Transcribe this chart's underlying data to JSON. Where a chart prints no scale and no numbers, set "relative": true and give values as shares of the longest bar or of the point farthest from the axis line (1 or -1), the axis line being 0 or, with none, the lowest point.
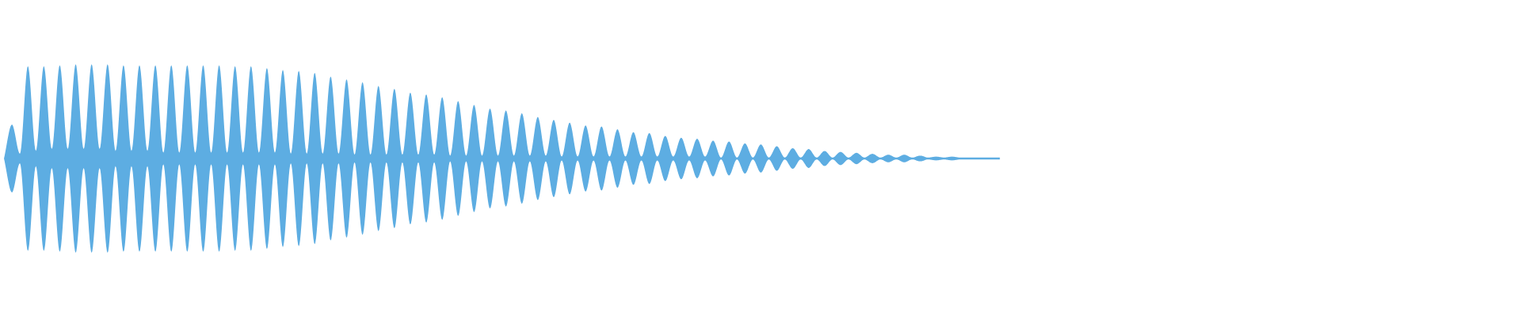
{
  "chart_data": {
    "type": "area",
    "relative": true,
    "tick_labels": false,
    "legend": false,
    "categories": [
      null,
      null,
      null,
      null,
      null,
      null,
      null,
      null,
      null,
      null,
      null,
      null,
      null,
      null,
      null,
      null,
      null,
      null,
      null,
      null,
      null,
      null,
      null,
      null,
      null,
      null,
      null,
      null,
      null,
      null,
      null,
      null,
      null,
      null,
      null,
      null,
      null,
      null,
      null,
      null,
      null,
      null,
      null,
      null,
      null,
      null,
      null,
      null,
      null,
      null,
      null,
      null,
      null,
      null,
      null,
      null,
      null,
      null,
      null,
      null,
      null,
      null,
      null,
      null,
      null,
      null,
      null,
      null,
      null,
      null,
      null,
      null,
      null,
      null,
      null,
      null,
      null,
      null,
      null,
      null,
      null,
      null,
      null,
      null,
      null,
      null,
      null,
      null,
      null,
      null,
      null,
      null,
      null,
      null,
      null,
      null,
      null,
      null,
      null,
      null,
      null,
      null,
      null,
      null,
      null,
      null,
      null,
      null,
      null,
      null,
      null,
      null,
      null,
      null,
      null,
      null,
      null,
      null,
      null,
      null,
      null,
      null,
      null,
      null,
      null,
      null
    ],
    "series": [
      {
        "color": "#5dade2",
        "values": [
          0,
          0.36,
          0.05,
          0.98,
          0.08,
          0.98,
          0.1,
          0.99,
          0.1,
          1.0,
          0.1,
          1.0,
          0.1,
          1.0,
          0.08,
          0.99,
          0.08,
          0.99,
          0.08,
          0.99,
          0.06,
          0.99,
          0.06,
          0.99,
          0.06,
          0.99,
          0.06,
          0.99,
          0.06,
          0.98,
          0.06,
          0.98,
          0.06,
          0.96,
          0.06,
          0.94,
          0.05,
          0.93,
          0.05,
          0.91,
          0.05,
          0.87,
          0.05,
          0.84,
          0.04,
          0.81,
          0.04,
          0.77,
          0.04,
          0.74,
          0.04,
          0.7,
          0.04,
          0.68,
          0.04,
          0.65,
          0.03,
          0.61,
          0.03,
          0.57,
          0.03,
          0.53,
          0.03,
          0.51,
          0.03,
          0.48,
          0.03,
          0.44,
          0.03,
          0.41,
          0.02,
          0.38,
          0.02,
          0.35,
          0.02,
          0.34,
          0.02,
          0.31,
          0.02,
          0.28,
          0.02,
          0.27,
          0.02,
          0.24,
          0.02,
          0.22,
          0.02,
          0.21,
          0.02,
          0.19,
          0.01,
          0.18,
          0.01,
          0.16,
          0.01,
          0.15,
          0.01,
          0.13,
          0.01,
          0.11,
          0.01,
          0.1,
          0.01,
          0.08,
          0.01,
          0.07,
          0.01,
          0.06,
          0.01,
          0.05,
          0.01,
          0.04,
          0.01,
          0.04,
          0.01,
          0.03,
          0.01,
          0.02,
          0.01,
          0.02,
          0.01,
          0.01,
          0.01,
          0.01,
          0.01,
          0.01
        ]
      }
    ]
  }
}
